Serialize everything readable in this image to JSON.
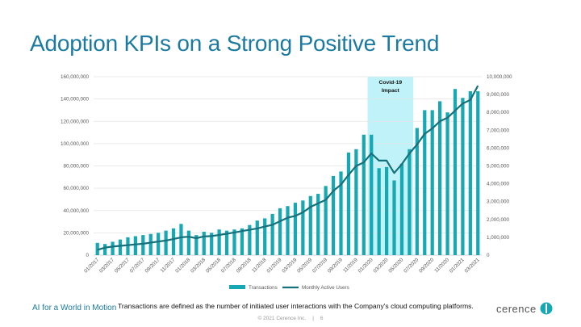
{
  "slide": {
    "title": "Adoption KPIs on a Strong Positive Trend",
    "tagline": "AI for a World in Motion",
    "footnote": "Transactions are defined as the number of initiated user interactions with the Company's cloud computing platforms.",
    "copyright": "© 2021 Cerence Inc.",
    "separator": "|",
    "page_number": "6",
    "brand": "cerence",
    "colors": {
      "title": "#1b7aa1",
      "bar": "#16a9b3",
      "line": "#16717d",
      "covid_band": "#bff3f9"
    }
  },
  "chart_data": {
    "type": "bar+line",
    "categories": [
      "01/2017",
      "02/2017",
      "03/2017",
      "04/2017",
      "05/2017",
      "06/2017",
      "07/2017",
      "08/2017",
      "09/2017",
      "10/2017",
      "11/2017",
      "12/2017",
      "01/2018",
      "02/2018",
      "03/2018",
      "04/2018",
      "05/2018",
      "06/2018",
      "07/2018",
      "08/2018",
      "09/2018",
      "10/2018",
      "11/2018",
      "12/2018",
      "01/2019",
      "02/2019",
      "03/2019",
      "04/2019",
      "05/2019",
      "06/2019",
      "07/2019",
      "08/2019",
      "09/2019",
      "10/2019",
      "11/2019",
      "12/2019",
      "01/2020",
      "02/2020",
      "03/2020",
      "04/2020",
      "05/2020",
      "06/2020",
      "07/2020",
      "08/2020",
      "09/2020",
      "10/2020",
      "11/2020",
      "12/2020",
      "01/2021",
      "02/2021",
      "03/2021"
    ],
    "x_tick_labels": [
      "01/2017",
      "03/2017",
      "05/2017",
      "07/2017",
      "09/2017",
      "11/2017",
      "01/2018",
      "03/2018",
      "05/2018",
      "07/2018",
      "09/2018",
      "11/2018",
      "01/2019",
      "03/2019",
      "05/2019",
      "07/2019",
      "09/2019",
      "11/2019",
      "01/2020",
      "03/2020",
      "05/2020",
      "07/2020",
      "09/2020",
      "11/2020",
      "01/2021",
      "03/2021"
    ],
    "series": [
      {
        "name": "Transactions",
        "axis": "left",
        "type": "bar",
        "values": [
          11000000,
          10000000,
          12000000,
          14000000,
          16000000,
          17000000,
          18000000,
          19000000,
          20000000,
          22000000,
          24000000,
          28000000,
          22000000,
          18000000,
          21000000,
          20000000,
          23000000,
          22000000,
          23000000,
          24000000,
          27000000,
          31000000,
          33000000,
          37000000,
          42000000,
          44000000,
          47000000,
          49000000,
          53000000,
          55000000,
          62000000,
          71000000,
          75000000,
          92000000,
          95000000,
          108000000,
          108000000,
          78000000,
          79000000,
          67000000,
          82000000,
          95000000,
          114000000,
          130000000,
          130000000,
          138000000,
          128000000,
          149000000,
          141000000,
          147000000,
          147000000
        ]
      },
      {
        "name": "Monthly Active Users",
        "axis": "right",
        "type": "line",
        "values": [
          300000,
          420000,
          480000,
          520000,
          560000,
          600000,
          640000,
          700000,
          760000,
          820000,
          900000,
          1000000,
          1030000,
          950000,
          1050000,
          1070000,
          1130000,
          1200000,
          1270000,
          1350000,
          1420000,
          1500000,
          1600000,
          1700000,
          1900000,
          2100000,
          2200000,
          2400000,
          2700000,
          2900000,
          3100000,
          3600000,
          3950000,
          4500000,
          5000000,
          5200000,
          5700000,
          5300000,
          5300000,
          4600000,
          5100000,
          5700000,
          6200000,
          6800000,
          7100000,
          7500000,
          7700000,
          8100000,
          8500000,
          8700000,
          9500000
        ]
      }
    ],
    "y_left": {
      "min": 0,
      "max": 160000000,
      "ticks": [
        "0",
        "20,000,000",
        "40,000,000",
        "60,000,000",
        "80,000,000",
        "100,000,000",
        "120,000,000",
        "140,000,000",
        "160,000,000"
      ]
    },
    "y_right": {
      "min": 0,
      "max": 10000000,
      "ticks": [
        "0",
        "1,000,000",
        "2,000,000",
        "3,000,000",
        "4,000,000",
        "5,000,000",
        "6,000,000",
        "7,000,000",
        "8,000,000",
        "9,000,000",
        "10,000,000"
      ]
    },
    "annotation": {
      "label": "Covid-19 Impact",
      "from": "01/2020",
      "to": "07/2020"
    },
    "legend": {
      "position": "bottom"
    },
    "grid": true
  }
}
